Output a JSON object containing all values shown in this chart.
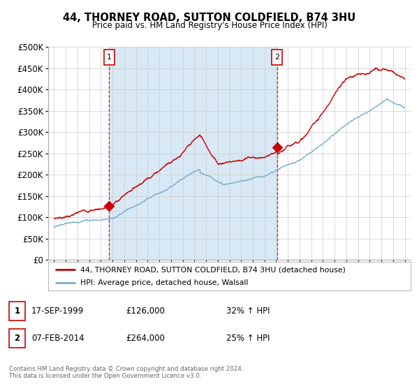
{
  "title": "44, THORNEY ROAD, SUTTON COLDFIELD, B74 3HU",
  "subtitle": "Price paid vs. HM Land Registry's House Price Index (HPI)",
  "ylabel_ticks": [
    0,
    50000,
    100000,
    150000,
    200000,
    250000,
    300000,
    350000,
    400000,
    450000,
    500000
  ],
  "ylabel_labels": [
    "£0",
    "£50K",
    "£100K",
    "£150K",
    "£200K",
    "£250K",
    "£300K",
    "£350K",
    "£400K",
    "£450K",
    "£500K"
  ],
  "ylim": [
    0,
    500000
  ],
  "xlim_start": 1994.5,
  "xlim_end": 2025.5,
  "xtick_years": [
    1995,
    1996,
    1997,
    1998,
    1999,
    2000,
    2001,
    2002,
    2003,
    2004,
    2005,
    2006,
    2007,
    2008,
    2009,
    2010,
    2011,
    2012,
    2013,
    2014,
    2015,
    2016,
    2017,
    2018,
    2019,
    2020,
    2021,
    2022,
    2023,
    2024,
    2025
  ],
  "sale1_x": 1999.71,
  "sale1_y": 126000,
  "sale1_label": "1",
  "sale2_x": 2014.08,
  "sale2_y": 264000,
  "sale2_label": "2",
  "red_line_color": "#cc0000",
  "blue_line_color": "#7aadcf",
  "shade_color": "#d8e8f5",
  "marker_box_color": "#cc0000",
  "legend1_label": "44, THORNEY ROAD, SUTTON COLDFIELD, B74 3HU (detached house)",
  "legend2_label": "HPI: Average price, detached house, Walsall",
  "table_row1": [
    "1",
    "17-SEP-1999",
    "£126,000",
    "32% ↑ HPI"
  ],
  "table_row2": [
    "2",
    "07-FEB-2014",
    "£264,000",
    "25% ↑ HPI"
  ],
  "footnote": "Contains HM Land Registry data © Crown copyright and database right 2024.\nThis data is licensed under the Open Government Licence v3.0.",
  "background_color": "#ffffff",
  "grid_color": "#cccccc"
}
